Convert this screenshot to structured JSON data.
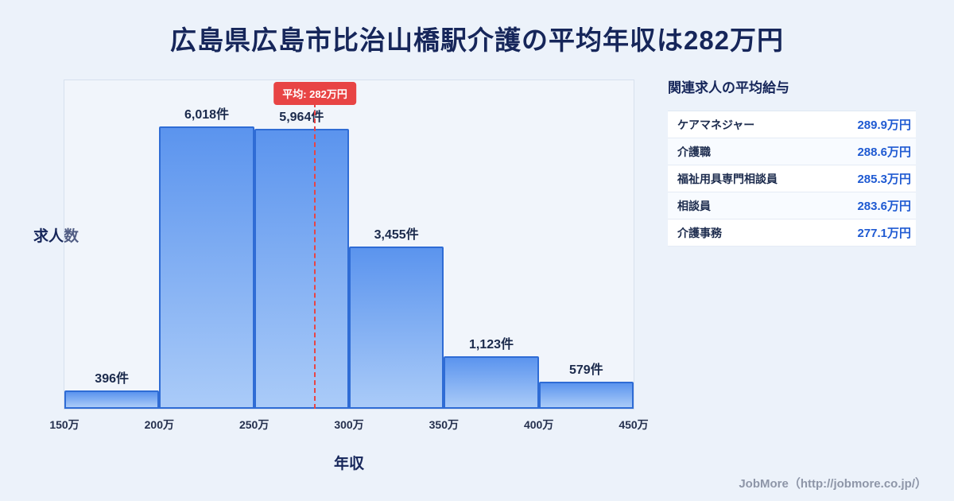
{
  "page": {
    "title": "広島県広島市比治山橋駅介護の平均年収は282万円",
    "footer": "JobMore（http://jobmore.co.jp/）"
  },
  "chart_data": {
    "type": "bar",
    "title": "広島県広島市比治山橋駅介護の平均年収は282万円",
    "xlabel": "年収",
    "ylabel": "求人数",
    "bin_edges": [
      150,
      200,
      250,
      300,
      350,
      400,
      450
    ],
    "bin_edge_labels": [
      "150万",
      "200万",
      "250万",
      "300万",
      "350万",
      "400万",
      "450万"
    ],
    "categories": [
      "150万-200万",
      "200万-250万",
      "250万-300万",
      "300万-350万",
      "350万-400万",
      "400万-450万"
    ],
    "values": [
      396,
      6018,
      5964,
      3455,
      1123,
      579
    ],
    "value_labels": [
      "396件",
      "6,018件",
      "5,964件",
      "3,455件",
      "1,123件",
      "579件"
    ],
    "ylim": [
      0,
      7000
    ],
    "grid": false,
    "legend": "none",
    "average_line": {
      "value": 282,
      "label": "平均: 282万円"
    },
    "colors": {
      "bar_fill_top": "#5b94ee",
      "bar_fill_bottom": "#aacbf8",
      "bar_border": "#2f6cd5",
      "average_line": "#e84444",
      "title_text": "#16265a"
    }
  },
  "side_panel": {
    "heading": "関連求人の平均給与",
    "rows": [
      {
        "label": "ケアマネジャー",
        "value": "289.9万円"
      },
      {
        "label": "介護職",
        "value": "288.6万円"
      },
      {
        "label": "福祉用具専門相談員",
        "value": "285.3万円"
      },
      {
        "label": "相談員",
        "value": "283.6万円"
      },
      {
        "label": "介護事務",
        "value": "277.1万円"
      }
    ]
  }
}
